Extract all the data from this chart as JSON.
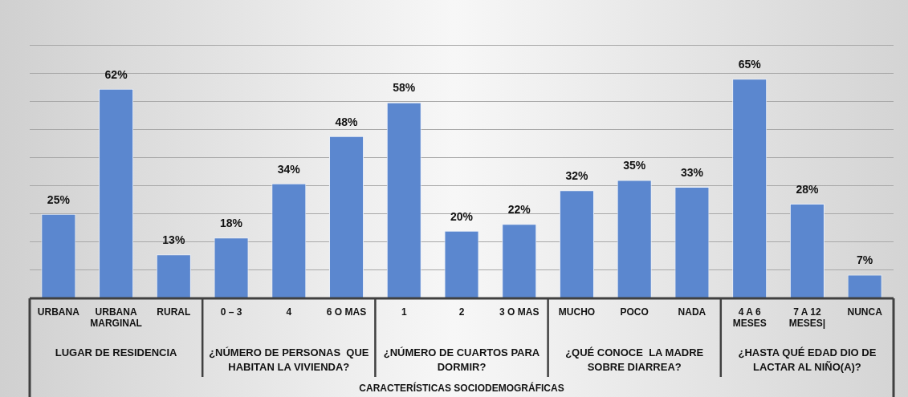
{
  "chart_data": {
    "type": "bar",
    "categories": [
      "URBANA",
      "URBANA MARGINAL",
      "RURAL",
      "0 – 3",
      "4",
      "6 O MAS",
      "1",
      "2",
      "3 O MAS",
      "MUCHO",
      "POCO",
      "NADA",
      "4 A 6 MESES",
      "7 A 12 MESES|",
      "NUNCA"
    ],
    "values": [
      25,
      62,
      13,
      18,
      34,
      48,
      58,
      20,
      22,
      32,
      35,
      33,
      65,
      28,
      7
    ],
    "value_labels": [
      "25%",
      "62%",
      "13%",
      "18%",
      "34%",
      "48%",
      "58%",
      "20%",
      "22%",
      "32%",
      "35%",
      "33%",
      "65%",
      "28%",
      "7%"
    ],
    "color": "#5b87cf",
    "ylim": [
      0,
      75
    ],
    "yticks": [
      {
        "value": 0,
        "label": null
      },
      {
        "value": 8.33,
        "label": null
      },
      {
        "value": 16.67,
        "label": null
      },
      {
        "value": 25,
        "label": null
      },
      {
        "value": 33.33,
        "label": null
      },
      {
        "value": 41.67,
        "label": null
      },
      {
        "value": 50,
        "label": null
      },
      {
        "value": 58.33,
        "label": null
      },
      {
        "value": 66.67,
        "label": null
      },
      {
        "value": 75,
        "label": null
      }
    ],
    "grid": "y",
    "annotations": [
      "LUGAR DE RESIDENCIA",
      "¿NÚMERO DE PERSONAS  QUE HABITAN LA VIVIENDA?",
      "¿NÚMERO DE CUARTOS PARA DORMIR?",
      "¿QUÉ CONOCE  LA MADRE SOBRE DIARREA?",
      "¿HASTA QUÉ EDAD DIO DE LACTAR AL NIÑO(A)?",
      "CARACTERÍSTICAS SOCIODEMOGRÁFICAS"
    ]
  }
}
